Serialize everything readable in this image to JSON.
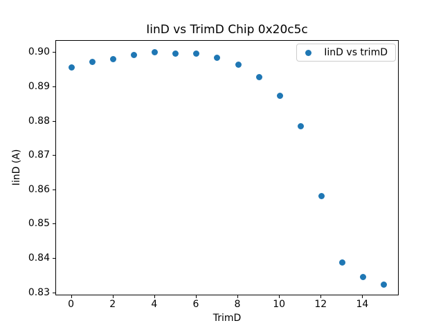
{
  "chart_data": {
    "type": "scatter",
    "title": "IinD vs TrimD Chip 0x20c5c",
    "xlabel": "TrimD",
    "ylabel": "IinD (A)",
    "legend": [
      {
        "label": "IinD vs trimD",
        "color": "#1f77b4"
      }
    ],
    "legend_position": "upper right",
    "grid": false,
    "marker": "circle",
    "marker_color": "#1f77b4",
    "x": [
      0,
      1,
      2,
      3,
      4,
      5,
      6,
      7,
      8,
      9,
      10,
      11,
      12,
      13,
      14,
      15
    ],
    "y": [
      0.8958,
      0.8974,
      0.8981,
      0.8993,
      0.9001,
      0.8997,
      0.8997,
      0.8985,
      0.8966,
      0.893,
      0.8875,
      0.8785,
      0.8582,
      0.8389,
      0.8346,
      0.8325
    ],
    "xlim": [
      -0.75,
      15.75
    ],
    "ylim": [
      0.8291,
      0.9035
    ],
    "xticks": [
      0,
      2,
      4,
      6,
      8,
      10,
      12,
      14
    ],
    "yticks": [
      0.83,
      0.84,
      0.85,
      0.86,
      0.87,
      0.88,
      0.89,
      0.9
    ],
    "ytick_decimals": 2
  },
  "colors": {
    "background": "#ffffff",
    "spine": "#000000",
    "text": "#000000",
    "legend_border": "#cccccc"
  }
}
